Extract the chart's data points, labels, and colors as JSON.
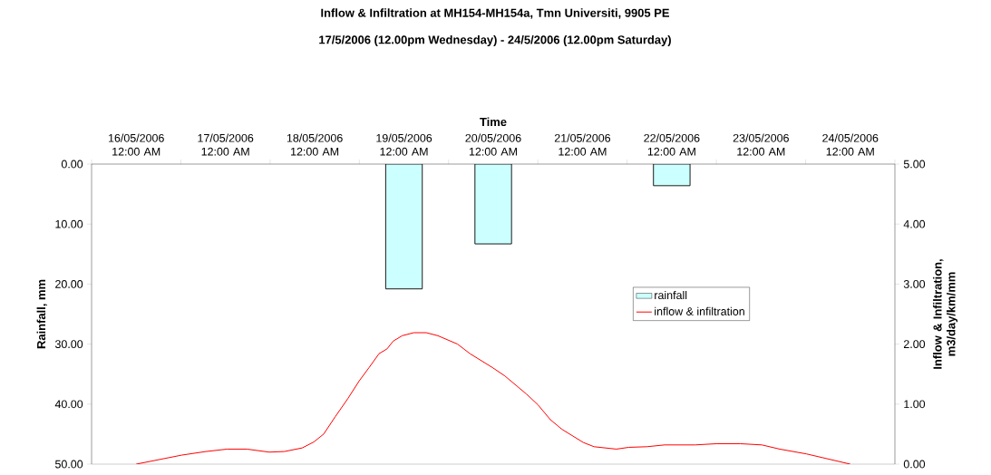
{
  "chart_data": {
    "type": "bar",
    "title": "Inflow & Infiltration at MH154-MH154a, Tmn Universiti, 9905 PE",
    "subtitle": "17/5/2006 (12.00pm Wednesday) - 24/5/2006 (12.00pm Saturday)",
    "xlabel": "Time",
    "ylabel": "Rainfall, mm",
    "y2label": "Inflow & Infiltration, m3/day/km/mm",
    "xlim": [
      "2006-05-15T12:00",
      "2006-05-24T12:00"
    ],
    "xticks": [
      {
        "value": "2006-05-16T00:00",
        "label": "16/05/2006 12:00 AM"
      },
      {
        "value": "2006-05-17T00:00",
        "label": "17/05/2006 12:00 AM"
      },
      {
        "value": "2006-05-18T00:00",
        "label": "18/05/2006 12:00 AM"
      },
      {
        "value": "2006-05-19T00:00",
        "label": "19/05/2006 12:00 AM"
      },
      {
        "value": "2006-05-20T00:00",
        "label": "20/05/2006 12:00 AM"
      },
      {
        "value": "2006-05-21T00:00",
        "label": "21/05/2006 12:00 AM"
      },
      {
        "value": "2006-05-22T00:00",
        "label": "22/05/2006 12:00 AM"
      },
      {
        "value": "2006-05-23T00:00",
        "label": "23/05/2006 12:00 AM"
      },
      {
        "value": "2006-05-24T00:00",
        "label": "24/05/2006 12:00 AM"
      }
    ],
    "series": [
      {
        "name": "rainfall",
        "color": "#ccffff",
        "x": [
          "2006-05-19T00:00",
          "2006-05-20T00:00",
          "2006-05-22T00:00"
        ],
        "values": [
          20.8,
          13.3,
          3.6
        ]
      },
      {
        "name": "inflow & infiltration",
        "type": "line",
        "axis": "y2",
        "color": "#ff0000",
        "x": [
          "2006-05-16T00:00",
          "2006-05-16T12:14",
          "2006-05-16T18:43",
          "2006-05-17T00:29",
          "2006-05-17T05:46",
          "2006-05-17T11:46",
          "2006-05-17T15:50",
          "2006-05-17T20:38",
          "2006-05-17T23:46",
          "2006-05-18T02:24",
          "2006-05-18T05:31",
          "2006-05-18T08:53",
          "2006-05-18T12:00",
          "2006-05-18T14:38",
          "2006-05-18T17:17",
          "2006-05-18T19:26",
          "2006-05-18T21:07",
          "2006-05-18T23:31",
          "2006-05-19T02:38",
          "2006-05-19T06:00",
          "2006-05-19T09:07",
          "2006-05-19T14:24",
          "2006-05-19T17:46",
          "2006-05-19T23:46",
          "2006-05-20T03:07",
          "2006-05-20T08:53",
          "2006-05-20T12:00",
          "2006-05-20T15:22",
          "2006-05-20T18:29",
          "2006-05-21T00:14",
          "2006-05-21T03:07",
          "2006-05-21T09:07",
          "2006-05-21T12:29",
          "2006-05-21T17:17",
          "2006-05-21T22:05",
          "2006-05-22T06:14",
          "2006-05-22T12:00",
          "2006-05-22T18:29",
          "2006-05-23T00:14",
          "2006-05-23T05:02",
          "2006-05-23T12:14",
          "2006-05-24T00:00"
        ],
        "values": [
          0,
          0.15,
          0.21,
          0.25,
          0.25,
          0.2,
          0.21,
          0.27,
          0.37,
          0.5,
          0.79,
          1.09,
          1.39,
          1.61,
          1.84,
          1.92,
          2.05,
          2.14,
          2.19,
          2.19,
          2.14,
          2.0,
          1.84,
          1.61,
          1.47,
          1.17,
          0.99,
          0.74,
          0.58,
          0.36,
          0.29,
          0.25,
          0.28,
          0.29,
          0.32,
          0.32,
          0.34,
          0.34,
          0.32,
          0.25,
          0.17,
          0
        ]
      }
    ],
    "ylim": [
      50,
      0
    ],
    "yticks": [
      {
        "value": 0,
        "label": "0.00"
      },
      {
        "value": 10,
        "label": "10.00"
      },
      {
        "value": 20,
        "label": "20.00"
      },
      {
        "value": 30,
        "label": "30.00"
      },
      {
        "value": 40,
        "label": "40.00"
      },
      {
        "value": 50,
        "label": "50.00"
      }
    ],
    "y2lim": [
      0,
      5
    ],
    "y2ticks": [
      {
        "value": 0,
        "label": "0.00"
      },
      {
        "value": 1,
        "label": "1.00"
      },
      {
        "value": 2,
        "label": "2.00"
      },
      {
        "value": 3,
        "label": "3.00"
      },
      {
        "value": 4,
        "label": "4.00"
      },
      {
        "value": 5,
        "label": "5.00"
      }
    ],
    "legend": "right",
    "marker": "none",
    "line_style": "solid",
    "grid": false
  }
}
